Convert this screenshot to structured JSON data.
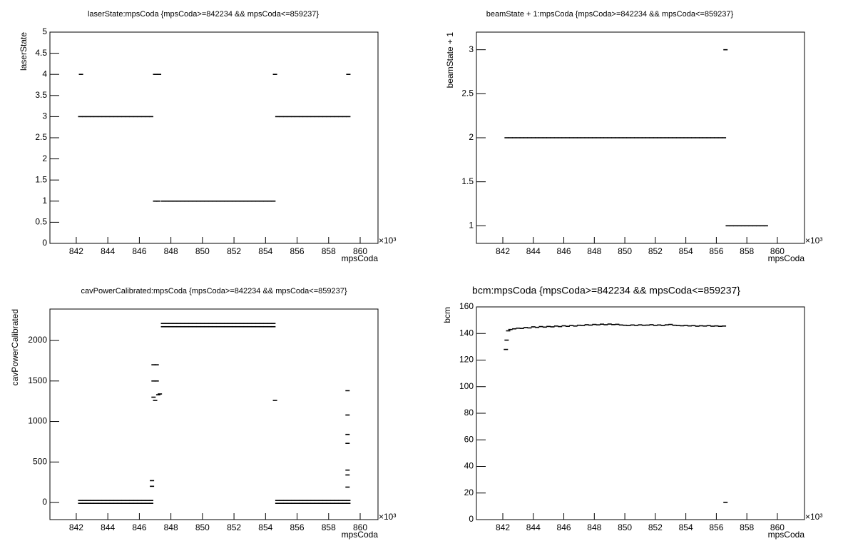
{
  "chart_data": [
    {
      "type": "scatter",
      "title": "laserState:mpsCoda {mpsCoda>=842234 && mpsCoda<=859237}",
      "xlabel": "mpsCoda",
      "ylabel": "laserState",
      "x_multiplier": "×10³",
      "xlim": [
        840.33,
        861.13
      ],
      "ylim": [
        0,
        5
      ],
      "xticks": [
        842,
        844,
        846,
        848,
        850,
        852,
        854,
        856,
        858,
        860
      ],
      "yticks": [
        0,
        0.5,
        1,
        1.5,
        2,
        2.5,
        3,
        3.5,
        4,
        4.5,
        5
      ],
      "color": "#000000",
      "series": [
        {
          "x": [
            842.25,
            842.5,
            842.75,
            843,
            843.25,
            843.5,
            843.75,
            844,
            844.25,
            844.5,
            844.75,
            845,
            845.25,
            845.5,
            845.75,
            846,
            846.25,
            846.5,
            846.75
          ],
          "y": [
            3,
            3,
            3,
            3,
            3,
            3,
            3,
            3,
            3,
            3,
            3,
            3,
            3,
            3,
            3,
            3,
            3,
            3,
            3
          ]
        },
        {
          "x": [
            842.3,
            847,
            847.25,
            854.6,
            859.25
          ],
          "y": [
            4,
            4,
            4,
            4,
            4
          ]
        },
        {
          "x": [
            847,
            847.2,
            847.5,
            847.75,
            848,
            848.25,
            848.5,
            848.75,
            849,
            849.25,
            849.5,
            849.75,
            850,
            850.25,
            850.5,
            850.75,
            851,
            851.25,
            851.5,
            851.75,
            852,
            852.25,
            852.5,
            852.75,
            853,
            853.25,
            853.5,
            853.75,
            854,
            854.25,
            854.5
          ],
          "y": [
            1,
            1,
            1,
            1,
            1,
            1,
            1,
            1,
            1,
            1,
            1,
            1,
            1,
            1,
            1,
            1,
            1,
            1,
            1,
            1,
            1,
            1,
            1,
            1,
            1,
            1,
            1,
            1,
            1,
            1,
            1
          ]
        },
        {
          "x": [
            854.75,
            855,
            855.25,
            855.5,
            855.75,
            856,
            856.25,
            856.5,
            856.75,
            857,
            857.25,
            857.5,
            857.75,
            858,
            858.25,
            858.5,
            858.75,
            859,
            859.25
          ],
          "y": [
            3,
            3,
            3,
            3,
            3,
            3,
            3,
            3,
            3,
            3,
            3,
            3,
            3,
            3,
            3,
            3,
            3,
            3,
            3
          ]
        }
      ]
    },
    {
      "type": "scatter",
      "title": "beamState + 1:mpsCoda {mpsCoda>=842234 && mpsCoda<=859237}",
      "xlabel": "mpsCoda",
      "ylabel": "beamState + 1",
      "x_multiplier": "×10³",
      "xlim": [
        840.27,
        861.78
      ],
      "ylim": [
        0.8,
        3.2
      ],
      "xticks": [
        842,
        844,
        846,
        848,
        850,
        852,
        854,
        856,
        858,
        860
      ],
      "yticks": [
        1,
        1.5,
        2,
        2.5,
        3
      ],
      "color": "#000000",
      "series": [
        {
          "x": [
            842.25,
            842.5,
            842.75,
            843,
            843.25,
            843.5,
            843.75,
            844,
            844.25,
            844.5,
            844.75,
            845,
            845.25,
            845.5,
            845.75,
            846,
            846.25,
            846.5,
            846.75,
            847,
            847.25,
            847.5,
            847.75,
            848,
            848.25,
            848.5,
            848.75,
            849,
            849.25,
            849.5,
            849.75,
            850,
            850.25,
            850.5,
            850.75,
            851,
            851.25,
            851.5,
            851.75,
            852,
            852.25,
            852.5,
            852.75,
            853,
            853.25,
            853.5,
            853.75,
            854,
            854.25,
            854.5,
            854.75,
            855,
            855.25,
            855.5,
            855.75,
            856,
            856.25,
            856.5
          ],
          "y": [
            2,
            2,
            2,
            2,
            2,
            2,
            2,
            2,
            2,
            2,
            2,
            2,
            2,
            2,
            2,
            2,
            2,
            2,
            2,
            2,
            2,
            2,
            2,
            2,
            2,
            2,
            2,
            2,
            2,
            2,
            2,
            2,
            2,
            2,
            2,
            2,
            2,
            2,
            2,
            2,
            2,
            2,
            2,
            2,
            2,
            2,
            2,
            2,
            2,
            2,
            2,
            2,
            2,
            2,
            2,
            2,
            2,
            2
          ]
        },
        {
          "x": [
            856.75,
            857,
            857.25,
            857.5,
            857.75,
            858,
            858.25,
            858.5,
            858.75,
            859,
            859.25
          ],
          "y": [
            1,
            1,
            1,
            1,
            1,
            1,
            1,
            1,
            1,
            1,
            1
          ]
        },
        {
          "x": [
            856.6
          ],
          "y": [
            3
          ]
        }
      ]
    },
    {
      "type": "scatter",
      "title": "cavPowerCalibrated:mpsCoda {mpsCoda>=842234 && mpsCoda<=859237}",
      "xlabel": "mpsCoda",
      "ylabel": "cavPowerCalibrated",
      "x_multiplier": "×10³",
      "xlim": [
        840.33,
        861.13
      ],
      "ylim": [
        -211,
        2388
      ],
      "xticks": [
        842,
        844,
        846,
        848,
        850,
        852,
        854,
        856,
        858,
        860
      ],
      "yticks": [
        0,
        500,
        1000,
        1500,
        2000
      ],
      "color": "#000000",
      "series": [
        {
          "x": [
            842.25,
            842.5,
            842.75,
            843,
            843.25,
            843.5,
            843.75,
            844,
            844.25,
            844.5,
            844.75,
            845,
            845.25,
            845.5,
            845.75,
            846,
            846.25,
            846.5,
            846.75
          ],
          "y": [
            25,
            25,
            25,
            25,
            25,
            25,
            25,
            25,
            25,
            25,
            25,
            25,
            25,
            25,
            25,
            25,
            25,
            25,
            25
          ]
        },
        {
          "x": [
            842.25,
            842.5,
            842.75,
            843,
            843.25,
            843.5,
            843.75,
            844,
            844.25,
            844.5,
            844.75,
            845,
            845.25,
            845.5,
            845.75,
            846,
            846.25,
            846.5,
            846.75
          ],
          "y": [
            -10,
            -10,
            -10,
            -10,
            -10,
            -10,
            -10,
            -10,
            -10,
            -10,
            -10,
            -10,
            -10,
            -10,
            -10,
            -10,
            -10,
            -10,
            -10
          ]
        },
        {
          "x": [
            847.5,
            847.75,
            848,
            848.25,
            848.5,
            848.75,
            849,
            849.25,
            849.5,
            849.75,
            850,
            850.25,
            850.5,
            850.75,
            851,
            851.25,
            851.5,
            851.75,
            852,
            852.25,
            852.5,
            852.75,
            853,
            853.25,
            853.5,
            853.75,
            854,
            854.25,
            854.5
          ],
          "y": [
            2210,
            2210,
            2210,
            2210,
            2210,
            2210,
            2210,
            2210,
            2210,
            2210,
            2210,
            2210,
            2210,
            2210,
            2210,
            2210,
            2210,
            2210,
            2210,
            2210,
            2210,
            2210,
            2210,
            2210,
            2210,
            2210,
            2210,
            2210,
            2210
          ]
        },
        {
          "x": [
            847.5,
            847.75,
            848,
            848.25,
            848.5,
            848.75,
            849,
            849.25,
            849.5,
            849.75,
            850,
            850.25,
            850.5,
            850.75,
            851,
            851.25,
            851.5,
            851.75,
            852,
            852.25,
            852.5,
            852.75,
            853,
            853.25,
            853.5,
            853.75,
            854,
            854.25,
            854.5
          ],
          "y": [
            2170,
            2170,
            2170,
            2170,
            2170,
            2170,
            2170,
            2170,
            2170,
            2170,
            2170,
            2170,
            2170,
            2170,
            2170,
            2170,
            2170,
            2170,
            2170,
            2170,
            2170,
            2170,
            2170,
            2170,
            2170,
            2170,
            2170,
            2170,
            2170
          ]
        },
        {
          "x": [
            854.75,
            855,
            855.25,
            855.5,
            855.75,
            856,
            856.25,
            856.5,
            856.75,
            857,
            857.25,
            857.5,
            857.75,
            858,
            858.25,
            858.5,
            858.75,
            859,
            859.25
          ],
          "y": [
            25,
            25,
            25,
            25,
            25,
            25,
            25,
            25,
            25,
            25,
            25,
            25,
            25,
            25,
            25,
            25,
            25,
            25,
            25
          ]
        },
        {
          "x": [
            854.75,
            855,
            855.25,
            855.5,
            855.75,
            856,
            856.25,
            856.5,
            856.75,
            857,
            857.25,
            857.5,
            857.75,
            858,
            858.25,
            858.5,
            858.75,
            859,
            859.25
          ],
          "y": [
            -10,
            -10,
            -10,
            -10,
            -10,
            -10,
            -10,
            -10,
            -10,
            -10,
            -10,
            -10,
            -10,
            -10,
            -10,
            -10,
            -10,
            -10,
            -10
          ]
        },
        {
          "x": [
            846.9,
            846.9,
            846.9,
            847,
            847.1,
            847.1,
            847.2,
            847.3,
            846.8,
            846.8,
            854.6,
            859.2,
            859.2,
            859.2,
            859.2,
            859.2,
            859.2,
            859.2
          ],
          "y": [
            1700,
            1500,
            1300,
            1260,
            1700,
            1500,
            1330,
            1340,
            270,
            200,
            1260,
            1380,
            1080,
            840,
            730,
            400,
            340,
            190
          ]
        }
      ]
    },
    {
      "type": "scatter",
      "title": "bcm:mpsCoda {mpsCoda>=842234 && mpsCoda<=859237}",
      "xlabel": "mpsCoda",
      "ylabel": "bcm",
      "x_multiplier": "×10³",
      "xlim": [
        840.27,
        861.78
      ],
      "ylim": [
        0,
        160
      ],
      "xticks": [
        842,
        844,
        846,
        848,
        850,
        852,
        854,
        856,
        858,
        860
      ],
      "yticks": [
        0,
        20,
        40,
        60,
        80,
        100,
        120,
        140,
        160
      ],
      "color": "#000000",
      "series": [
        {
          "x": [
            842.2,
            842.25,
            842.35,
            842.5,
            842.75,
            843,
            843.25,
            843.5,
            843.75,
            844,
            844.25,
            844.5,
            844.75,
            845,
            845.25,
            845.5,
            845.75,
            846,
            846.25,
            846.5,
            846.75,
            847,
            847.25,
            847.5,
            847.75,
            848,
            848.25,
            848.5,
            848.75,
            849,
            849.25,
            849.5,
            849.75,
            850,
            850.25,
            850.5,
            850.75,
            851,
            851.25,
            851.5,
            851.75,
            852,
            852.25,
            852.5,
            852.75,
            853,
            853.25,
            853.5,
            853.75,
            854,
            854.25,
            854.5,
            854.75,
            855,
            855.25,
            855.5,
            855.75,
            856,
            856.25,
            856.5,
            856.6
          ],
          "y": [
            128,
            135,
            142,
            143,
            143.5,
            144,
            143.8,
            144.5,
            144.2,
            145,
            144.6,
            145.2,
            144.8,
            145.3,
            145,
            145.6,
            145.2,
            145.8,
            145.4,
            146,
            145.6,
            146.2,
            146,
            146.6,
            146.3,
            146.8,
            146.5,
            147,
            146.6,
            147.1,
            146.7,
            146.9,
            146.4,
            146.2,
            146,
            146.4,
            146.1,
            146.5,
            146.2,
            146.3,
            146.6,
            146.1,
            146.4,
            146,
            146.5,
            146.8,
            146.2,
            146,
            145.8,
            146.1,
            145.7,
            145.9,
            145.5,
            145.8,
            145.6,
            145.9,
            145.5,
            145.7,
            145.4,
            145.6,
            13
          ]
        }
      ]
    }
  ]
}
